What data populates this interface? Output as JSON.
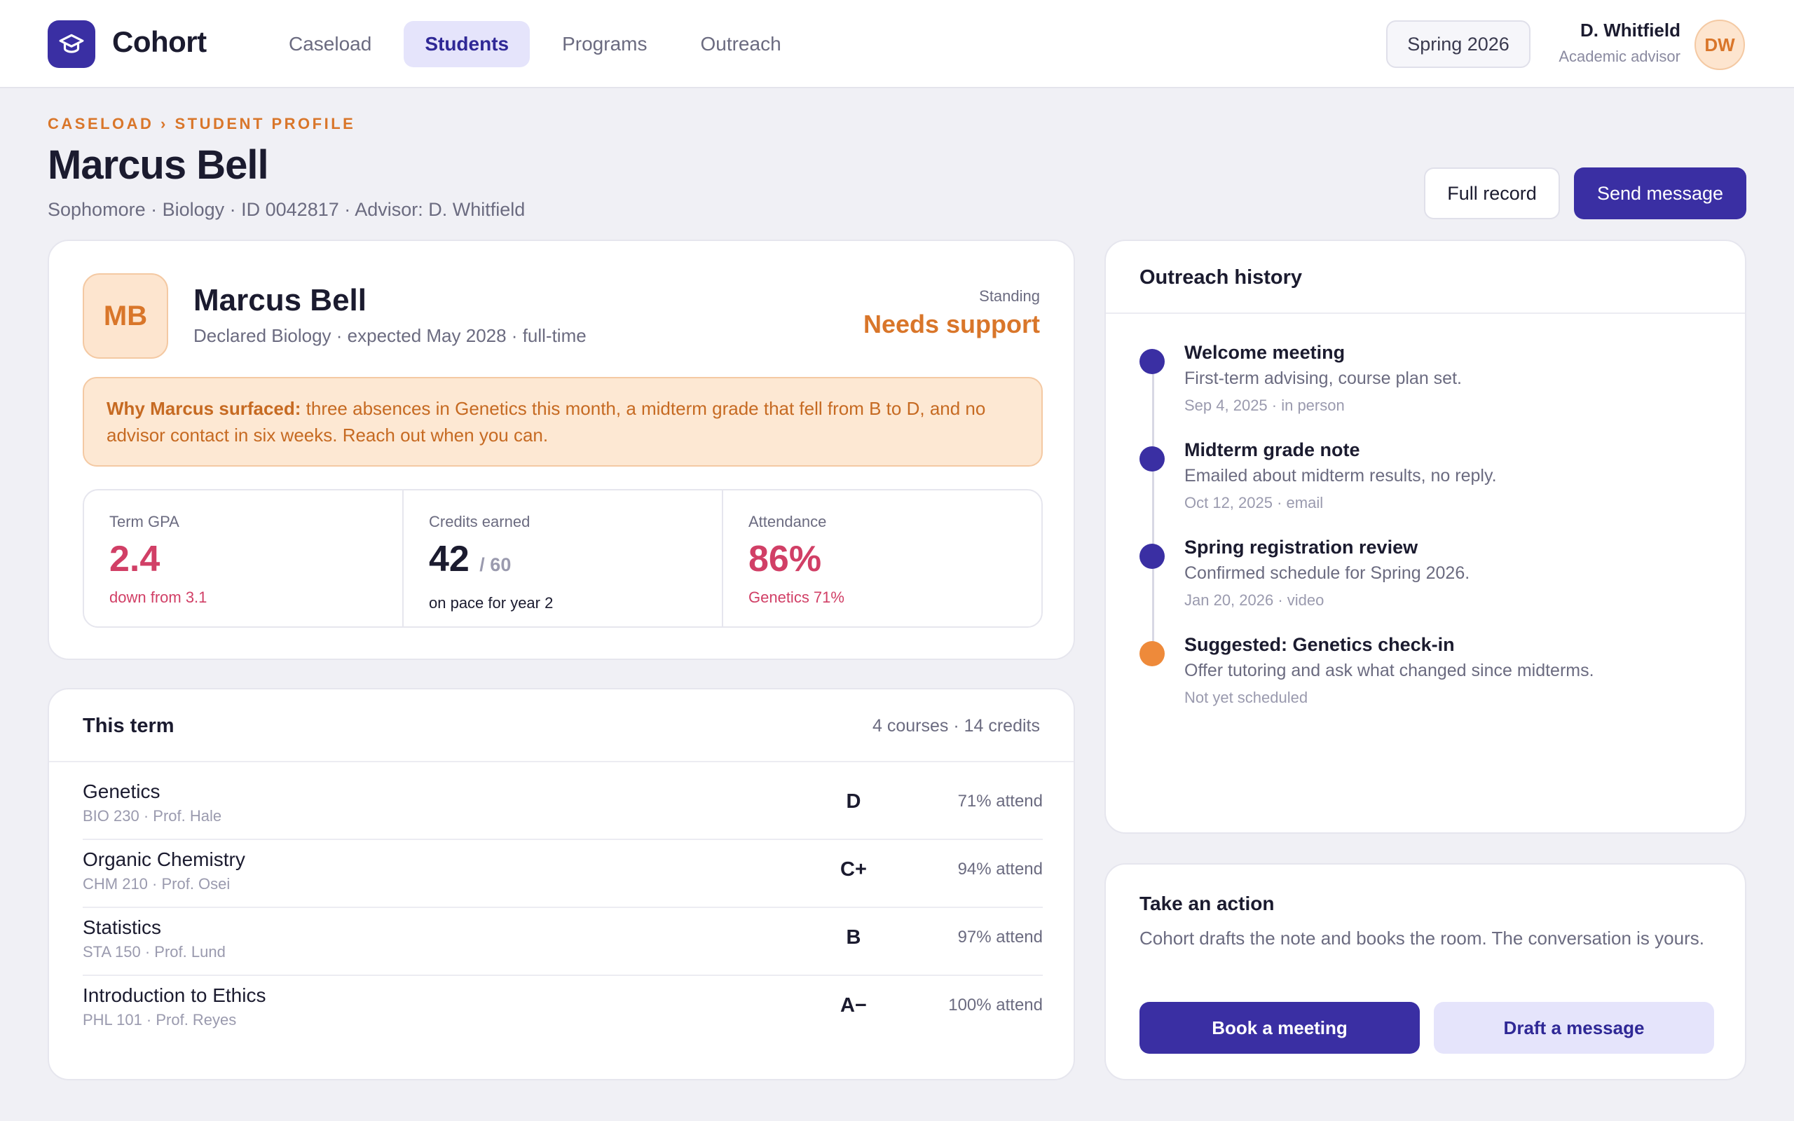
{
  "app": {
    "brand": "Cohort",
    "logo_icon": "graduation-cap-icon",
    "accent": "#3a2fa3"
  },
  "nav": {
    "tabs": [
      {
        "label": "Caseload",
        "active": false
      },
      {
        "label": "Students",
        "active": true
      },
      {
        "label": "Programs",
        "active": false
      },
      {
        "label": "Outreach",
        "active": false
      }
    ],
    "term": "Spring 2026",
    "user": {
      "name": "D. Whitfield",
      "role": "Academic advisor",
      "initials": "DW"
    }
  },
  "header": {
    "breadcrumb": "CASELOAD › STUDENT PROFILE",
    "title": "Marcus Bell",
    "subtitle": "Sophomore · Biology · ID 0042817 · Advisor: D. Whitfield",
    "full_record_label": "Full record",
    "send_message_label": "Send message"
  },
  "profile": {
    "initials": "MB",
    "name": "Marcus Bell",
    "detail": "Declared Biology · expected May 2028 · full-time",
    "standing_label": "Standing",
    "standing_value": "Needs support",
    "alert_lead": "Why Marcus surfaced:",
    "alert_text": " three absences in Genetics this month, a midterm grade that fell from B to D, and no advisor contact in six weeks. Reach out when you can.",
    "stats": {
      "gpa": {
        "label": "Term GPA",
        "value": "2.4",
        "note": "down from 3.1"
      },
      "credits": {
        "label": "Credits earned",
        "value": "42",
        "denom": "/ 60",
        "note": "on pace for year 2"
      },
      "attendance": {
        "label": "Attendance",
        "value": "86%",
        "note": "Genetics 71%"
      }
    }
  },
  "term": {
    "title": "This term",
    "meta": "4 courses · 14 credits",
    "courses": [
      {
        "name": "Genetics",
        "code": "BIO 230 · Prof. Hale",
        "grade": "D",
        "attend": "71% attend"
      },
      {
        "name": "Organic Chemistry",
        "code": "CHM 210 · Prof. Osei",
        "grade": "C+",
        "attend": "94% attend"
      },
      {
        "name": "Statistics",
        "code": "STA 150 · Prof. Lund",
        "grade": "B",
        "attend": "97% attend"
      },
      {
        "name": "Introduction to Ethics",
        "code": "PHL 101 · Prof. Reyes",
        "grade": "A−",
        "attend": "100% attend"
      }
    ]
  },
  "outreach": {
    "title": "Outreach history",
    "items": [
      {
        "title": "Welcome meeting",
        "desc": "First-term advising, course plan set.",
        "meta": "Sep 4, 2025 · in person"
      },
      {
        "title": "Midterm grade note",
        "desc": "Emailed about midterm results, no reply.",
        "meta": "Oct 12, 2025 · email"
      },
      {
        "title": "Spring registration review",
        "desc": "Confirmed schedule for Spring 2026.",
        "meta": "Jan 20, 2026 · video"
      },
      {
        "title": "Suggested: Genetics check-in",
        "desc": "Offer tutoring and ask what changed since midterms.",
        "meta": "Not yet scheduled"
      }
    ]
  },
  "action": {
    "title": "Take an action",
    "desc": "Cohort drafts the note and books the room. The conversation is yours.",
    "book_label": "Book a meeting",
    "draft_label": "Draft a message"
  }
}
